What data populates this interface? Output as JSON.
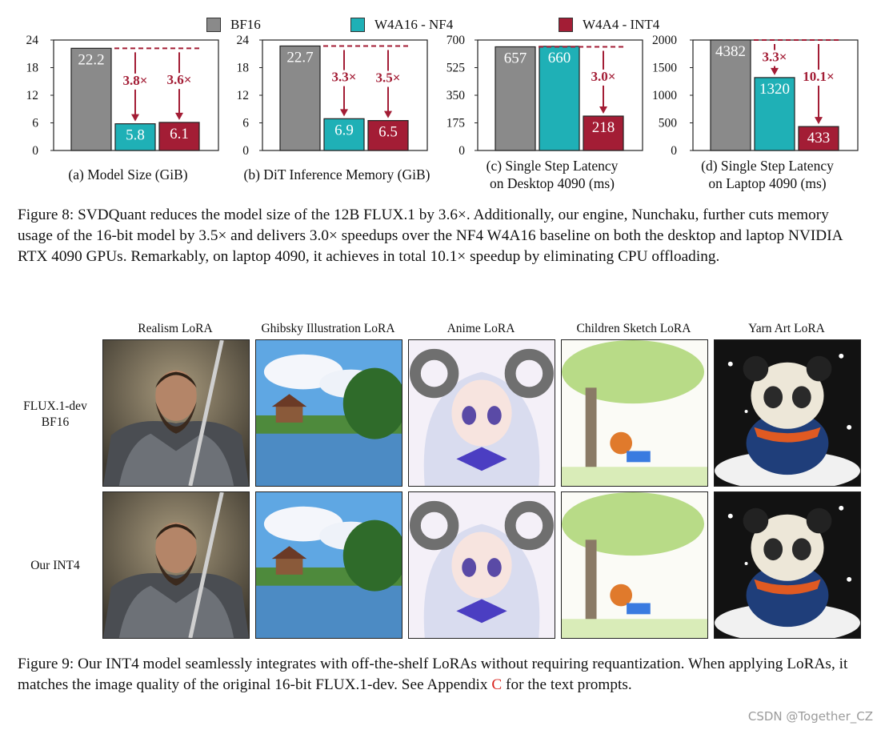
{
  "legend": [
    {
      "label": "BF16",
      "color": "#8a8a8a"
    },
    {
      "label": "W4A16 - NF4",
      "color": "#1fb0b6"
    },
    {
      "label": "W4A4 - INT4",
      "color": "#a31d35"
    }
  ],
  "chart_data": [
    {
      "type": "bar",
      "title": "(a) Model Size (GiB)",
      "categories": [
        "BF16",
        "W4A16 - NF4",
        "W4A4 - INT4"
      ],
      "values": [
        22.2,
        5.8,
        6.1
      ],
      "value_labels": [
        "22.2",
        "5.8",
        "6.1"
      ],
      "ylim": [
        0,
        24
      ],
      "yticks": [
        "0",
        "6",
        "12",
        "18",
        "24"
      ],
      "annotations": [
        {
          "bar": 1,
          "text": "3.8×"
        },
        {
          "bar": 2,
          "text": "3.6×"
        }
      ]
    },
    {
      "type": "bar",
      "title": "(b) DiT Inference Memory (GiB)",
      "categories": [
        "BF16",
        "W4A16 - NF4",
        "W4A4 - INT4"
      ],
      "values": [
        22.7,
        6.9,
        6.5
      ],
      "value_labels": [
        "22.7",
        "6.9",
        "6.5"
      ],
      "ylim": [
        0,
        24
      ],
      "yticks": [
        "0",
        "6",
        "12",
        "18",
        "24"
      ],
      "annotations": [
        {
          "bar": 1,
          "text": "3.3×"
        },
        {
          "bar": 2,
          "text": "3.5×"
        }
      ]
    },
    {
      "type": "bar",
      "title": [
        "(c) Single Step Latency",
        "on Desktop 4090 (ms)"
      ],
      "categories": [
        "BF16",
        "W4A16 - NF4",
        "W4A4 - INT4"
      ],
      "values": [
        657,
        660,
        218
      ],
      "value_labels": [
        "657",
        "660",
        "218"
      ],
      "ylim": [
        0,
        700
      ],
      "yticks": [
        "0",
        "175",
        "350",
        "525",
        "700"
      ],
      "annotations": [
        {
          "bar": 2,
          "text": "3.0×"
        }
      ]
    },
    {
      "type": "bar",
      "title": [
        "(d) Single Step Latency",
        "on Laptop 4090 (ms)"
      ],
      "categories": [
        "BF16",
        "W4A16 - NF4",
        "W4A4 - INT4"
      ],
      "values": [
        4382,
        1320,
        433
      ],
      "value_labels": [
        "4382",
        "1320",
        "433"
      ],
      "ylim": [
        0,
        2000
      ],
      "yticks": [
        "0",
        "500",
        "1000",
        "1500",
        "2000"
      ],
      "annotations": [
        {
          "bar": 1,
          "text": "3.3×"
        },
        {
          "bar": 2,
          "text": "10.1×"
        }
      ]
    }
  ],
  "fig8_caption": "Figure 8: SVDQuant reduces the model size of the 12B FLUX.1 by 3.6×. Additionally, our engine, Nunchaku, further cuts memory usage of the 16-bit model by 3.5× and delivers 3.0× speedups over the NF4 W4A16 baseline on both the desktop and laptop NVIDIA RTX 4090 GPUs. Remarkably, on laptop 4090, it achieves in total 10.1× speedup by eliminating CPU offloading.",
  "lora_grid": {
    "columns": [
      "Realism LoRA",
      "Ghibsky Illustration LoRA",
      "Anime LoRA",
      "Children Sketch LoRA",
      "Yarn Art LoRA"
    ],
    "rows": [
      {
        "label_line1": "FLUX.1-dev",
        "label_line2": "BF16"
      },
      {
        "label_line1": "Our INT4",
        "label_line2": ""
      }
    ]
  },
  "fig9_caption": {
    "before": "Figure 9: Our INT4 model seamlessly integrates with off-the-shelf LoRAs without requiring requantization. When applying LoRAs, it matches the image quality of the original 16-bit FLUX.1-dev. See Appendix ",
    "cite": "C",
    "after": " for the text prompts."
  },
  "watermark": "CSDN @Together_CZ"
}
